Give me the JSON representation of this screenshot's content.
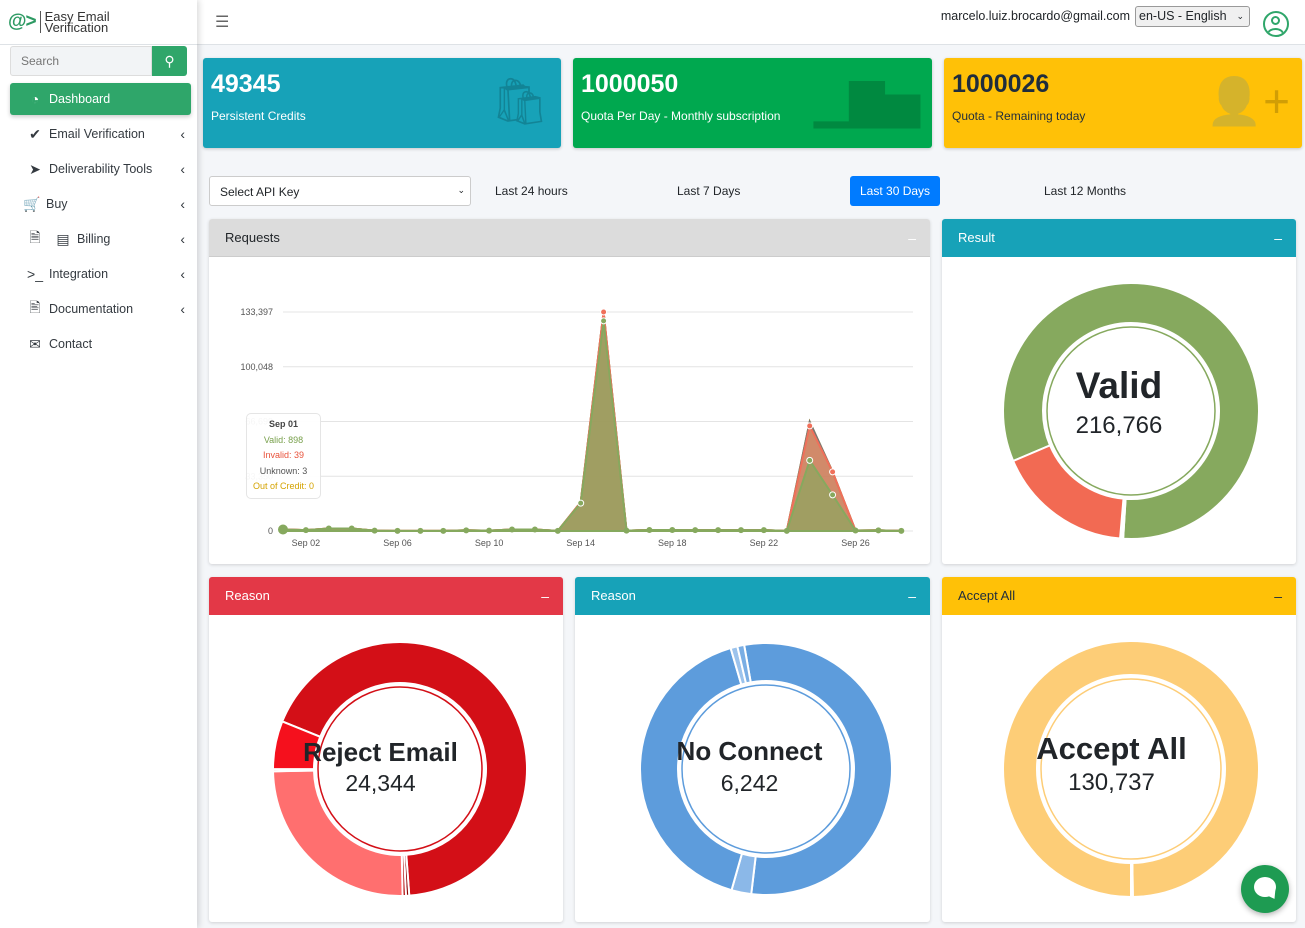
{
  "brand": {
    "logo": "@>",
    "name_line1": "Easy Email",
    "name_line2": "Verification"
  },
  "search": {
    "placeholder": "Search",
    "icon": "search-icon"
  },
  "sidebar": {
    "items": [
      {
        "label": "Dashboard",
        "icon": "dashboard-icon",
        "active": true
      },
      {
        "label": "Email Verification",
        "icon": "check-circle-icon",
        "chevron": true
      },
      {
        "label": "Deliverability Tools",
        "icon": "paper-plane-icon",
        "chevron": true
      },
      {
        "label": "Buy",
        "icon": "cart-icon",
        "chevron": true
      },
      {
        "label": "Billing",
        "icon": "file-icon",
        "chevron": true
      },
      {
        "label": "Integration",
        "icon": "terminal-icon",
        "chevron": true
      },
      {
        "label": "Documentation",
        "icon": "document-icon",
        "chevron": true
      },
      {
        "label": "Contact",
        "icon": "envelope-icon"
      }
    ]
  },
  "header": {
    "email": "marcelo.luiz.brocardo@gmail.com",
    "language": "en-US - English"
  },
  "stats": [
    {
      "value": "49345",
      "label": "Persistent Credits",
      "color": "#17a2b8",
      "icon": "shopping-bag-icon"
    },
    {
      "value": "1000050",
      "label": "Quota Per Day - Monthly subscription",
      "color": "#00a84f",
      "icon": "bar-chart-icon"
    },
    {
      "value": "1000026",
      "label": "Quota - Remaining today",
      "color": "#ffc107",
      "icon": "user-plus-icon"
    }
  ],
  "filters": {
    "api_key_placeholder": "Select API Key",
    "ranges": [
      "Last 24 hours",
      "Last 7 Days",
      "Last 30 Days",
      "Last 12 Months"
    ],
    "selected": "Last 30 Days"
  },
  "cards": {
    "requests": {
      "title": "Requests"
    },
    "result": {
      "title": "Result",
      "label": "Valid",
      "value": "216,766"
    },
    "reason1": {
      "title": "Reason",
      "label": "Reject Email",
      "value": "24,344"
    },
    "reason2": {
      "title": "Reason",
      "label": "No Connect",
      "value": "6,242"
    },
    "accept": {
      "title": "Accept All",
      "label": "Accept All",
      "value": "130,737"
    }
  },
  "tooltip": {
    "date": "Sep 01",
    "valid": "Valid: 898",
    "invalid": "Invalid: 39",
    "unknown": "Unknown: 3",
    "out_of_credit": "Out of Credit: 0"
  },
  "chart_data": [
    {
      "type": "area",
      "stacked": true,
      "x": [
        "Sep 01",
        "Sep 02",
        "Sep 03",
        "Sep 04",
        "Sep 05",
        "Sep 06",
        "Sep 07",
        "Sep 08",
        "Sep 09",
        "Sep 10",
        "Sep 11",
        "Sep 12",
        "Sep 13",
        "Sep 14",
        "Sep 15",
        "Sep 16",
        "Sep 17",
        "Sep 18",
        "Sep 19",
        "Sep 20",
        "Sep 21",
        "Sep 22",
        "Sep 23",
        "Sep 24",
        "Sep 25",
        "Sep 26",
        "Sep 27",
        "Sep 28"
      ],
      "x_tick_labels": [
        "Sep 02",
        "Sep 06",
        "Sep 10",
        "Sep 14",
        "Sep 18",
        "Sep 22",
        "Sep 26"
      ],
      "y_ticks": [
        "0",
        "33,350",
        "66,699",
        "100,048",
        "133,397"
      ],
      "ylim": [
        0,
        133397
      ],
      "grid": true,
      "series": [
        {
          "name": "Valid",
          "color": "#86a95e",
          "values": [
            898,
            500,
            1500,
            1500,
            200,
            100,
            100,
            100,
            400,
            200,
            900,
            900,
            100,
            17000,
            128000,
            200,
            600,
            600,
            500,
            500,
            500,
            500,
            100,
            43000,
            22000,
            300,
            400,
            100
          ]
        },
        {
          "name": "Invalid",
          "color": "#f0705a",
          "values": [
            39,
            20,
            50,
            50,
            10,
            5,
            5,
            5,
            20,
            10,
            40,
            40,
            5,
            500,
            5400,
            10,
            30,
            30,
            20,
            20,
            20,
            20,
            5,
            21000,
            14000,
            10,
            20,
            5
          ]
        },
        {
          "name": "Unknown",
          "color": "#777777",
          "values": [
            3,
            0,
            0,
            0,
            0,
            0,
            0,
            0,
            0,
            0,
            0,
            0,
            0,
            0,
            0,
            0,
            0,
            0,
            0,
            0,
            0,
            0,
            0,
            2500,
            0,
            0,
            0,
            0
          ]
        },
        {
          "name": "Out of Credit",
          "color": "#e0a800",
          "values": [
            0,
            0,
            0,
            0,
            0,
            0,
            0,
            0,
            0,
            0,
            0,
            0,
            0,
            0,
            0,
            0,
            0,
            0,
            0,
            0,
            0,
            0,
            0,
            0,
            0,
            0,
            0,
            0
          ]
        }
      ]
    },
    {
      "type": "pie",
      "id": "result",
      "segments": [
        {
          "value": 216766,
          "color": "#86a95e"
        },
        {
          "value": 500,
          "color": "#777777"
        },
        {
          "value": 500,
          "color": "#e0a800"
        },
        {
          "value": 45400,
          "color": "#f26a53"
        }
      ]
    },
    {
      "type": "pie",
      "id": "reason1",
      "segments": [
        {
          "value": 24344,
          "color": "#d30f17"
        },
        {
          "value": 150,
          "color": "#8b0000"
        },
        {
          "value": 150,
          "color": "#b00000"
        },
        {
          "value": 9000,
          "color": "#ff6f6f"
        },
        {
          "value": 100,
          "color": "#e34a4a"
        },
        {
          "value": 2200,
          "color": "#f5101d"
        }
      ]
    },
    {
      "type": "pie",
      "id": "reason2",
      "segments": [
        {
          "value": 6242,
          "color": "#5d9cdc"
        },
        {
          "value": 290,
          "color": "#8bb8e8"
        },
        {
          "value": 4690,
          "color": "#5d9cdc"
        },
        {
          "value": 100,
          "color": "#9cc3ec"
        },
        {
          "value": 100,
          "color": "#7aaee4"
        }
      ]
    },
    {
      "type": "pie",
      "id": "accept",
      "segments": [
        {
          "value": 130737,
          "color": "#fdcd77"
        },
        {
          "value": 300,
          "color": "#fdcd77"
        }
      ]
    }
  ]
}
